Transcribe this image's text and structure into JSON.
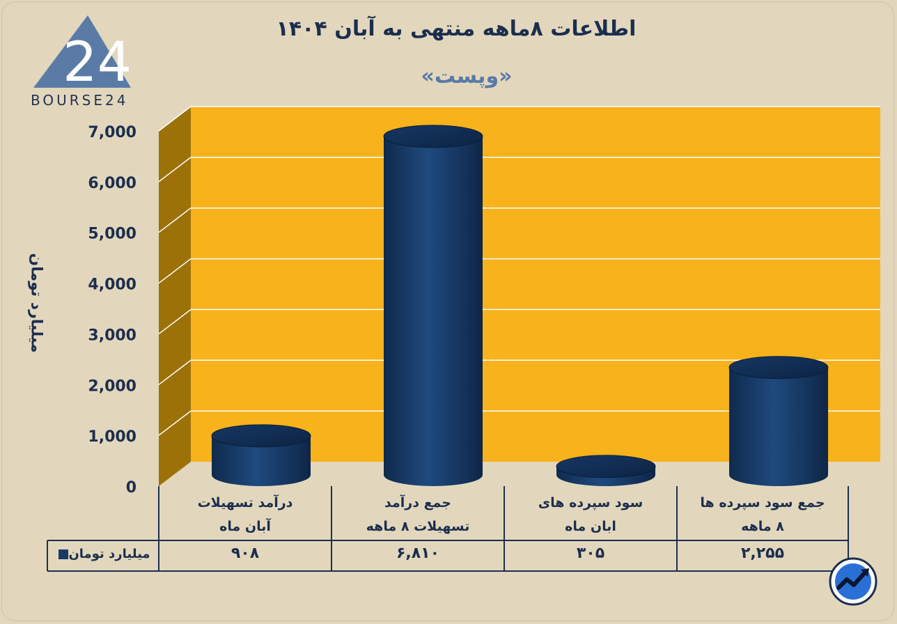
{
  "header": {
    "title": "اطلاعات  ۸ماهه منتهی به آبان ۱۴۰۴",
    "subtitle": "«وپست»",
    "logo_text": "BOURSE24"
  },
  "colors": {
    "background": "#e2d7bd",
    "plot_back": "#f8b21c",
    "plot_wall": "#9c7208",
    "bar": "#173a67",
    "text": "#1c2e4d"
  },
  "chart_data": {
    "type": "bar",
    "style": "3d-cylinder",
    "ylabel": "میلیارد تومان",
    "ylim": [
      0,
      7000
    ],
    "yticks": [
      {
        "value": 0,
        "label": "0"
      },
      {
        "value": 1000,
        "label": "1,000"
      },
      {
        "value": 2000,
        "label": "2,000"
      },
      {
        "value": 3000,
        "label": "3,000"
      },
      {
        "value": 4000,
        "label": "4,000"
      },
      {
        "value": 5000,
        "label": "5,000"
      },
      {
        "value": 6000,
        "label": "6,000"
      },
      {
        "value": 7000,
        "label": "7,000"
      }
    ],
    "grid": true,
    "legend": "data-table-left",
    "categories": [
      {
        "line1": "درآمد تسهیلات",
        "line2": "آبان ماه"
      },
      {
        "line1": "جمع درآمد",
        "line2": "تسهیلات ۸ ماهه"
      },
      {
        "line1": "سود سپرده های",
        "line2": "ابان ماه"
      },
      {
        "line1": "جمع سود سپرده ها",
        "line2": "۸ ماهه"
      }
    ],
    "series": [
      {
        "name": "میلیارد تومان",
        "values": [
          908,
          6810,
          305,
          2255
        ],
        "value_labels": [
          "۹۰۸",
          "۶,۸۱۰",
          "۳۰۵",
          "۲,۲۵۵"
        ]
      }
    ]
  },
  "corner_icon": "trend-arrow-icon"
}
